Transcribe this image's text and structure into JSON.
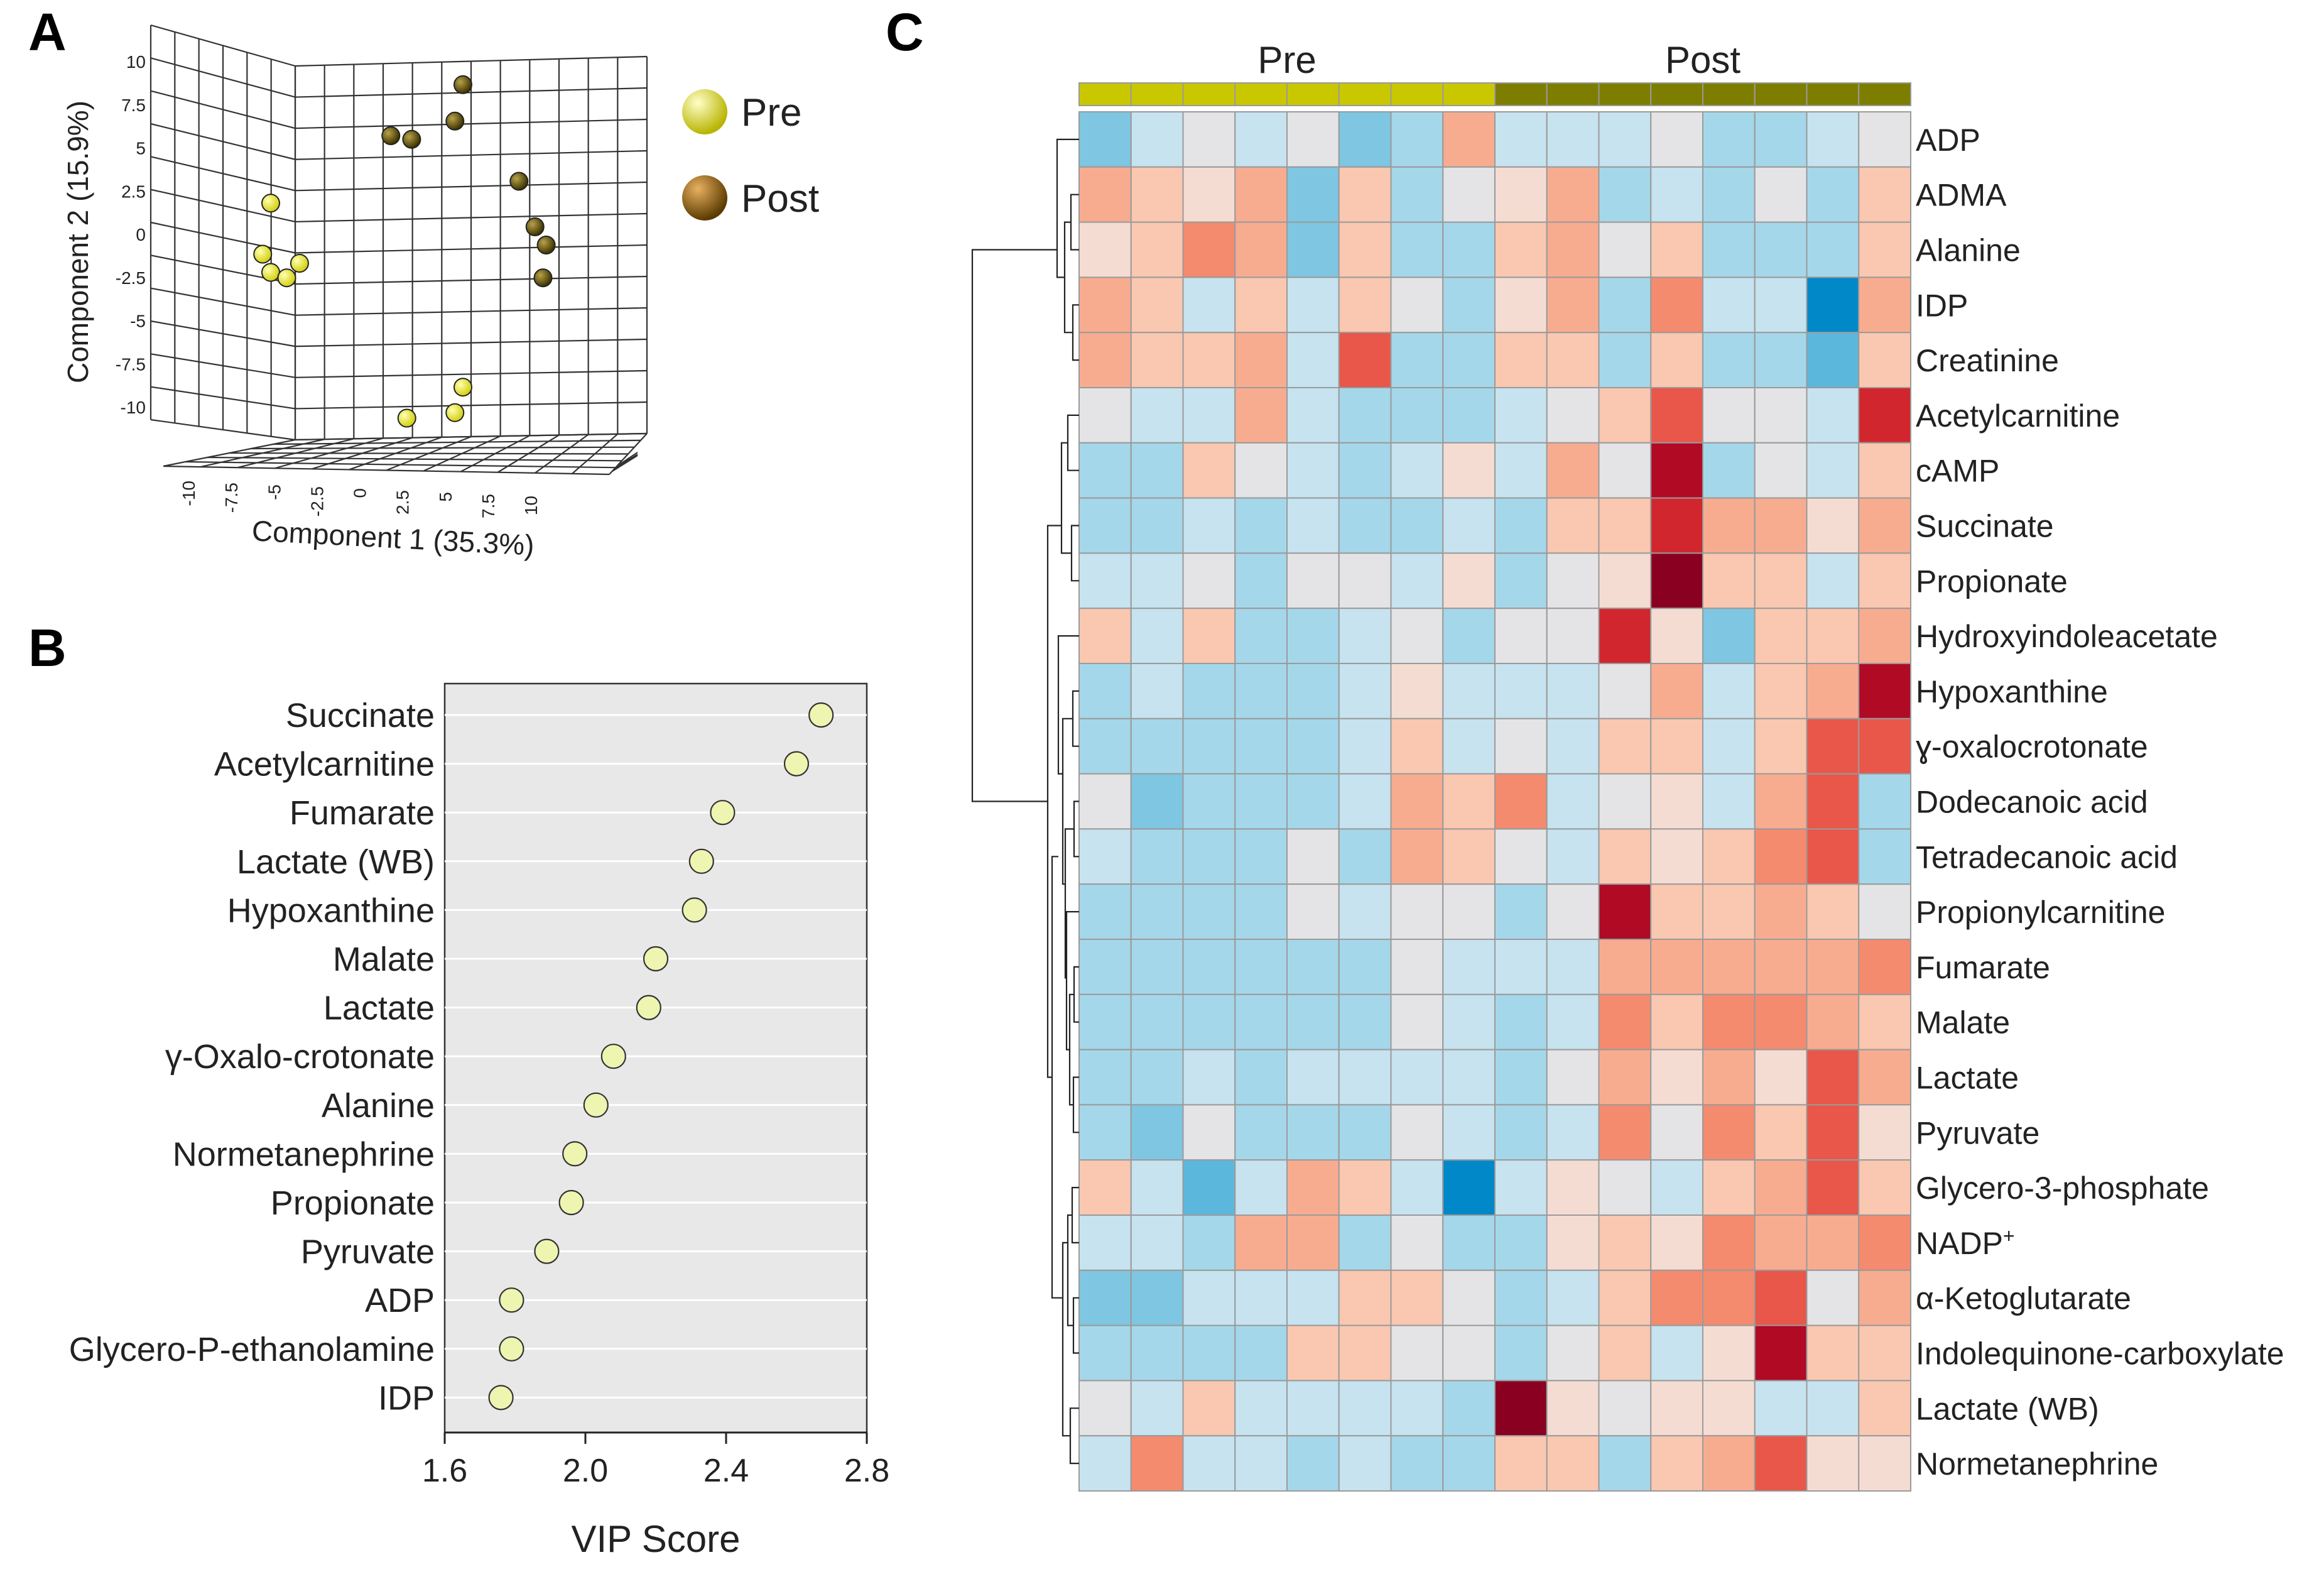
{
  "panels": {
    "a": "A",
    "b": "B",
    "c": "C"
  },
  "colors": {
    "pre": "#c9c800",
    "post": "#7d7d00",
    "pre_dot": "#d4d012",
    "post_dot": "#5a5000",
    "vip_dot": "#eef5b0"
  },
  "chart_data": [
    {
      "id": "A",
      "type": "scatter",
      "title": "",
      "xlabel": "Component  1 (35.3%)",
      "ylabel": "Component  2 (15.9%)",
      "x_ticks": [
        "-10",
        "-7.5",
        "-5",
        "-2.5",
        "0",
        "2.5",
        "5",
        "7.5",
        "10"
      ],
      "y_ticks": [
        "10",
        "7.5",
        "5",
        "2.5",
        "0",
        "-2.5",
        "-5",
        "-7.5",
        "-10"
      ],
      "legend": [
        {
          "name": "Pre",
          "color": "#d4d012"
        },
        {
          "name": "Post",
          "color": "#6b5c00"
        }
      ],
      "series": [
        {
          "name": "Pre",
          "points": [
            [
              -8.0,
              2.3
            ],
            [
              -8.5,
              -0.5
            ],
            [
              -8.0,
              -1.5
            ],
            [
              -7.0,
              -1.8
            ],
            [
              -6.2,
              -1.0
            ],
            [
              0.5,
              -9.5
            ],
            [
              3.5,
              -9.2
            ],
            [
              4.0,
              -7.8
            ]
          ]
        },
        {
          "name": "Post",
          "points": [
            [
              -0.5,
              6.0
            ],
            [
              0.8,
              5.8
            ],
            [
              3.5,
              6.8
            ],
            [
              4.0,
              8.8
            ],
            [
              7.5,
              3.5
            ],
            [
              8.5,
              1.0
            ],
            [
              9.2,
              0.0
            ],
            [
              9.0,
              -1.8
            ]
          ]
        }
      ]
    },
    {
      "id": "B",
      "type": "scatter",
      "title": "",
      "xlabel": "VIP Score",
      "ylabel": "",
      "xlim": [
        1.6,
        2.8
      ],
      "x_ticks": [
        "1.6",
        "2.0",
        "2.4",
        "2.8"
      ],
      "categories": [
        "Succinate",
        "Acetylcarnitine",
        "Fumarate",
        "Lactate (WB)",
        "Hypoxanthine",
        "Malate",
        "Lactate",
        "γ-Oxalo-crotonate",
        "Alanine",
        "Normetanephrine",
        "Propionate",
        "Pyruvate",
        "ADP",
        "Glycero-P-ethanolamine",
        "IDP"
      ],
      "values": [
        2.67,
        2.6,
        2.39,
        2.33,
        2.31,
        2.2,
        2.18,
        2.08,
        2.03,
        1.97,
        1.96,
        1.89,
        1.79,
        1.79,
        1.76
      ]
    },
    {
      "id": "C",
      "type": "heatmap",
      "title": "",
      "groups": [
        {
          "name": "Pre",
          "count": 8
        },
        {
          "name": "Post",
          "count": 8
        }
      ],
      "rows": [
        "ADP",
        "ADMA",
        "Alanine",
        "IDP",
        "Creatinine",
        "Acetylcarnitine",
        "cAMP",
        "Succinate",
        "Propionate",
        "Hydroxyindoleacetate",
        "Hypoxanthine",
        "ɣ-oxalocrotonate",
        "Dodecanoic  acid",
        "Tetradecanoic  acid",
        "Propionylcarnitine",
        "Fumarate",
        "Malate",
        "Lactate",
        "Pyruvate",
        "Glycero-3-phosphate",
        "NADP+",
        "α-Ketoglutarate",
        "Indolequinone-carboxylate",
        "Lactate  (WB)",
        "Normetanephrine"
      ],
      "color_scale": [
        "#0088c8",
        "#5bb7dc",
        "#7ec6e2",
        "#a5d7ea",
        "#c6e3ef",
        "#e4e4e6",
        "#f5dcd2",
        "#fac7b0",
        "#f7ac90",
        "#f48a6e",
        "#e8574a",
        "#d1262e",
        "#b00a25",
        "#8a0020"
      ],
      "matrix": [
        [
          -1.8,
          -0.9,
          -0.3,
          -0.7,
          -0.2,
          -1.8,
          -1.2,
          0.9,
          -0.8,
          -0.9,
          -0.9,
          -0.4,
          -1.1,
          -1.2,
          -0.8,
          -0.3
        ],
        [
          1.3,
          0.7,
          0.3,
          1.2,
          -1.7,
          0.6,
          -1.1,
          -0.2,
          0.2,
          1.1,
          -1.4,
          -0.8,
          -1.3,
          -0.2,
          -1.1,
          0.6
        ],
        [
          0.3,
          0.6,
          1.6,
          0.9,
          -1.6,
          0.4,
          -1.4,
          -1.1,
          0.7,
          1.3,
          -0.3,
          0.5,
          -1.3,
          -1.5,
          -1.1,
          0.4
        ],
        [
          1.0,
          0.4,
          -0.7,
          0.4,
          -0.7,
          0.6,
          -0.5,
          -1.4,
          0.3,
          0.9,
          -1.3,
          1.5,
          -0.9,
          -1.0,
          -2.6,
          1.3
        ],
        [
          1.0,
          0.6,
          0.4,
          0.9,
          -1.0,
          1.9,
          -1.3,
          -1.2,
          0.7,
          0.6,
          -1.1,
          0.8,
          -1.3,
          -1.4,
          -2.4,
          0.5
        ],
        [
          -0.2,
          -0.9,
          -0.9,
          1.0,
          -1.0,
          -1.2,
          -1.2,
          -1.3,
          -0.6,
          -0.2,
          0.5,
          2.3,
          -0.2,
          -0.5,
          -0.6,
          2.5
        ],
        [
          -1.1,
          -1.1,
          0.8,
          -0.2,
          -0.9,
          -1.2,
          -1.0,
          0.2,
          -0.9,
          1.2,
          -0.2,
          3.0,
          -1.2,
          -0.5,
          -1.0,
          0.8
        ],
        [
          -1.1,
          -1.1,
          -1.0,
          -1.1,
          -1.0,
          -1.1,
          -1.2,
          -1.0,
          -1.1,
          0.5,
          0.8,
          2.5,
          0.9,
          1.0,
          0.3,
          1.1
        ],
        [
          -1.0,
          -1.0,
          -0.2,
          -1.4,
          -0.3,
          -0.2,
          -1.0,
          0.3,
          -1.3,
          -0.2,
          0.3,
          3.4,
          0.5,
          0.4,
          -0.8,
          0.8
        ],
        [
          0.6,
          -0.8,
          0.7,
          -1.5,
          -1.5,
          -0.6,
          -0.3,
          -1.5,
          -0.2,
          -0.2,
          2.4,
          0.1,
          -1.6,
          0.5,
          0.8,
          1.1
        ],
        [
          -1.1,
          -1.0,
          -1.1,
          -1.2,
          -1.2,
          -0.9,
          0.3,
          -0.9,
          -0.8,
          -0.6,
          -0.3,
          1.0,
          -0.6,
          0.4,
          1.2,
          2.9
        ],
        [
          -1.1,
          -1.1,
          -1.2,
          -1.2,
          -1.2,
          -0.8,
          0.6,
          -0.8,
          -0.4,
          -0.6,
          0.7,
          0.5,
          -0.8,
          0.6,
          2.1,
          2.2
        ],
        [
          -0.2,
          -1.6,
          -1.3,
          -1.1,
          -1.4,
          -0.9,
          1.0,
          0.5,
          1.4,
          -0.8,
          -0.1,
          0.3,
          -0.7,
          1.3,
          1.9,
          -1.2
        ],
        [
          -0.6,
          -1.5,
          -1.3,
          -1.1,
          -0.2,
          -1.3,
          1.0,
          0.5,
          -0.5,
          -0.9,
          0.8,
          0.1,
          0.7,
          1.8,
          1.9,
          -1.2
        ],
        [
          -1.1,
          -1.1,
          -1.2,
          -1.3,
          -0.2,
          -0.7,
          -0.2,
          -0.1,
          -1.3,
          -0.3,
          2.9,
          0.5,
          0.8,
          1.0,
          0.5,
          -0.2
        ],
        [
          -1.2,
          -1.2,
          -1.3,
          -1.4,
          -1.2,
          -1.2,
          -0.1,
          -1.0,
          -0.9,
          -0.7,
          1.2,
          1.1,
          1.3,
          1.2,
          1.0,
          1.4
        ],
        [
          -1.2,
          -1.2,
          -1.3,
          -1.3,
          -1.2,
          -1.2,
          -0.2,
          -1.0,
          -1.1,
          -1.0,
          1.7,
          0.6,
          1.4,
          1.4,
          1.1,
          0.6
        ],
        [
          -1.2,
          -1.2,
          -0.7,
          -1.1,
          -0.7,
          -1.0,
          -0.6,
          -0.9,
          -1.2,
          -0.1,
          1.0,
          0.3,
          1.3,
          0.3,
          2.2,
          1.2
        ],
        [
          -1.2,
          -1.8,
          -0.2,
          -1.1,
          -1.1,
          -1.2,
          -0.2,
          -0.9,
          -1.1,
          -0.9,
          1.4,
          -0.3,
          1.6,
          0.5,
          2.2,
          0.3
        ],
        [
          0.5,
          -0.7,
          -2.2,
          -0.6,
          1.1,
          0.4,
          -0.8,
          -2.6,
          -0.6,
          0.3,
          -0.5,
          -0.9,
          0.7,
          0.9,
          2.2,
          0.5
        ],
        [
          -0.7,
          -0.6,
          -1.5,
          0.9,
          1.0,
          -1.4,
          -0.3,
          -1.4,
          -1.5,
          0.1,
          0.7,
          0.3,
          1.4,
          1.0,
          1.3,
          1.8
        ],
        [
          -1.6,
          -1.8,
          -1.0,
          -0.6,
          -0.7,
          0.4,
          0.7,
          -0.4,
          -1.5,
          -0.6,
          0.8,
          1.5,
          1.7,
          2.2,
          -0.1,
          1.0
        ],
        [
          -1.1,
          -1.1,
          -1.1,
          -1.1,
          0.4,
          0.5,
          -0.5,
          -0.3,
          -1.1,
          -0.2,
          0.6,
          -0.9,
          0.3,
          3.0,
          0.8,
          0.6
        ],
        [
          -0.5,
          -0.6,
          0.4,
          -0.6,
          -0.7,
          -0.7,
          -1.0,
          -1.1,
          3.4,
          0.3,
          -0.5,
          0.2,
          0.1,
          -0.6,
          -1.0,
          0.5
        ],
        [
          -1.0,
          1.5,
          -1.0,
          -0.6,
          -1.2,
          -1.0,
          -1.2,
          -1.2,
          0.8,
          0.4,
          -1.4,
          0.8,
          1.1,
          2.1,
          0.2,
          0.1
        ]
      ]
    }
  ]
}
